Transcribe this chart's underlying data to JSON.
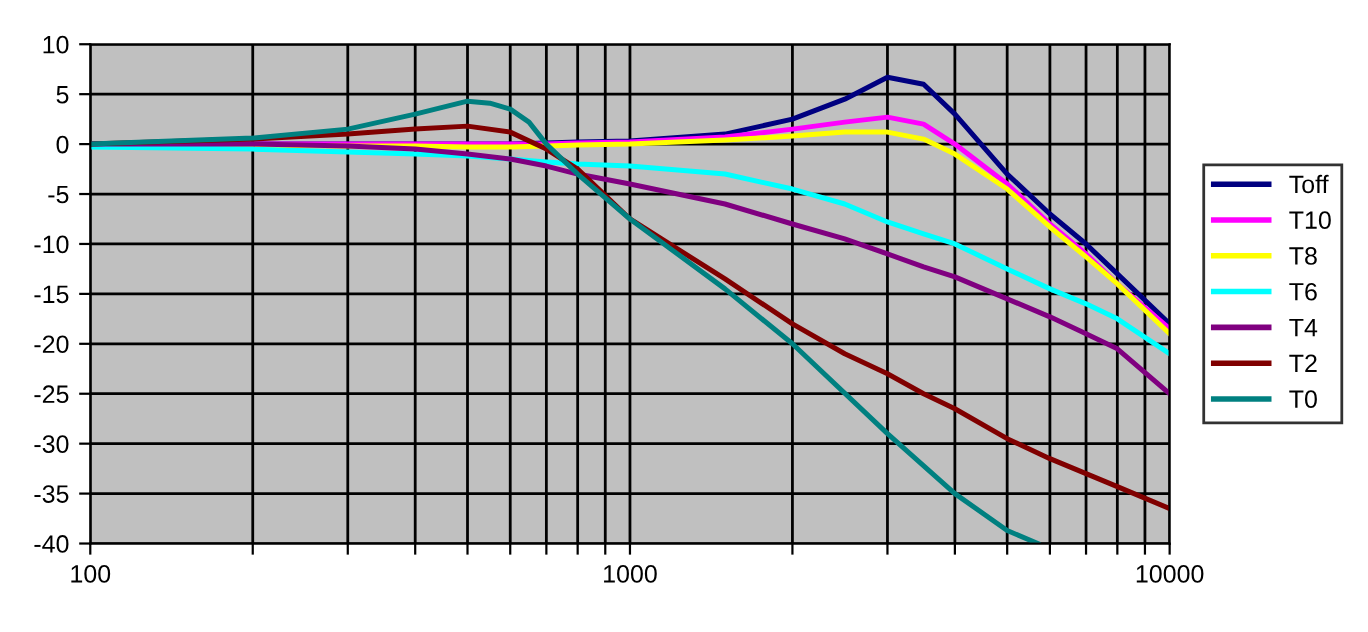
{
  "chart_data": {
    "type": "line",
    "log": "x",
    "xlim": [
      100,
      10000
    ],
    "ylim": [
      -40,
      10
    ],
    "xticks": [
      100,
      {
        "value": 200,
        "label": null
      },
      {
        "value": 300,
        "label": null
      },
      {
        "value": 400,
        "label": null
      },
      {
        "value": 500,
        "label": null
      },
      {
        "value": 600,
        "label": null
      },
      {
        "value": 700,
        "label": null
      },
      {
        "value": 800,
        "label": null
      },
      {
        "value": 900,
        "label": null
      },
      1000,
      {
        "value": 2000,
        "label": null
      },
      {
        "value": 3000,
        "label": null
      },
      {
        "value": 4000,
        "label": null
      },
      {
        "value": 5000,
        "label": null
      },
      {
        "value": 6000,
        "label": null
      },
      {
        "value": 7000,
        "label": null
      },
      {
        "value": 8000,
        "label": null
      },
      {
        "value": 9000,
        "label": null
      },
      10000
    ],
    "yticks": [
      -40,
      -35,
      -30,
      -25,
      -20,
      -15,
      -10,
      -5,
      0,
      5,
      10
    ],
    "grid": true,
    "legend": "right",
    "marker": "none",
    "line_style": "solid",
    "x": [
      100,
      200,
      300,
      400,
      500,
      600,
      700,
      800,
      1000,
      1500,
      2000,
      2500,
      3000,
      3500,
      4000,
      5000,
      6000,
      7000,
      8000,
      10000
    ],
    "series": [
      {
        "name": "Toff",
        "color": "#000080",
        "values": [
          0,
          0,
          0,
          0,
          0,
          0,
          0.1,
          0.2,
          0.3,
          1,
          2.5,
          4.5,
          6.7,
          6,
          3,
          -3,
          -7,
          -10,
          -13,
          -18
        ]
      },
      {
        "name": "T10",
        "color": "#ff00ff",
        "values": [
          0,
          0,
          0,
          0,
          0,
          0,
          0,
          0.1,
          0.2,
          0.7,
          1.5,
          2.2,
          2.7,
          2,
          0,
          -4,
          -8,
          -11,
          -14,
          -18.5
        ]
      },
      {
        "name": "T8",
        "color": "#ffff00",
        "values": [
          -0.1,
          -0.1,
          -0.2,
          -0.2,
          -0.3,
          -0.3,
          -0.2,
          -0.1,
          0,
          0.4,
          0.8,
          1.2,
          1.2,
          0.5,
          -1,
          -4.5,
          -8.3,
          -11.3,
          -14,
          -19
        ]
      },
      {
        "name": "T6",
        "color": "#00ffff",
        "values": [
          -0.3,
          -0.5,
          -0.8,
          -1,
          -1.2,
          -1.5,
          -1.8,
          -2,
          -2.2,
          -3,
          -4.5,
          -6,
          -7.8,
          -9,
          -10,
          -12.5,
          -14.5,
          -16,
          -17.5,
          -21
        ]
      },
      {
        "name": "T4",
        "color": "#800080",
        "values": [
          0,
          0,
          -0.2,
          -0.5,
          -1,
          -1.5,
          -2.2,
          -3,
          -4,
          -6,
          -8,
          -9.5,
          -11,
          -12.3,
          -13.3,
          -15.5,
          -17.3,
          -19,
          -20.5,
          -25
        ]
      },
      {
        "name": "T2",
        "color": "#800000",
        "values": [
          0,
          0.5,
          1,
          1.5,
          1.8,
          1.2,
          -0.5,
          -2.5,
          -7.5,
          -13.5,
          -18,
          -21,
          -23,
          -25,
          -26.5,
          -29.5,
          -31.5,
          -33,
          -34.3,
          -36.5
        ]
      },
      {
        "name": "T0",
        "color": "#008080",
        "x": [
          100,
          200,
          300,
          400,
          500,
          550,
          600,
          650,
          700,
          800,
          1000,
          1500,
          2000,
          3000,
          4000,
          5000,
          5700
        ],
        "values": [
          0,
          0.6,
          1.5,
          3,
          4.3,
          4.1,
          3.5,
          2.2,
          0,
          -3,
          -7.5,
          -14.5,
          -20,
          -29,
          -35,
          -38.7,
          -40
        ]
      }
    ]
  }
}
